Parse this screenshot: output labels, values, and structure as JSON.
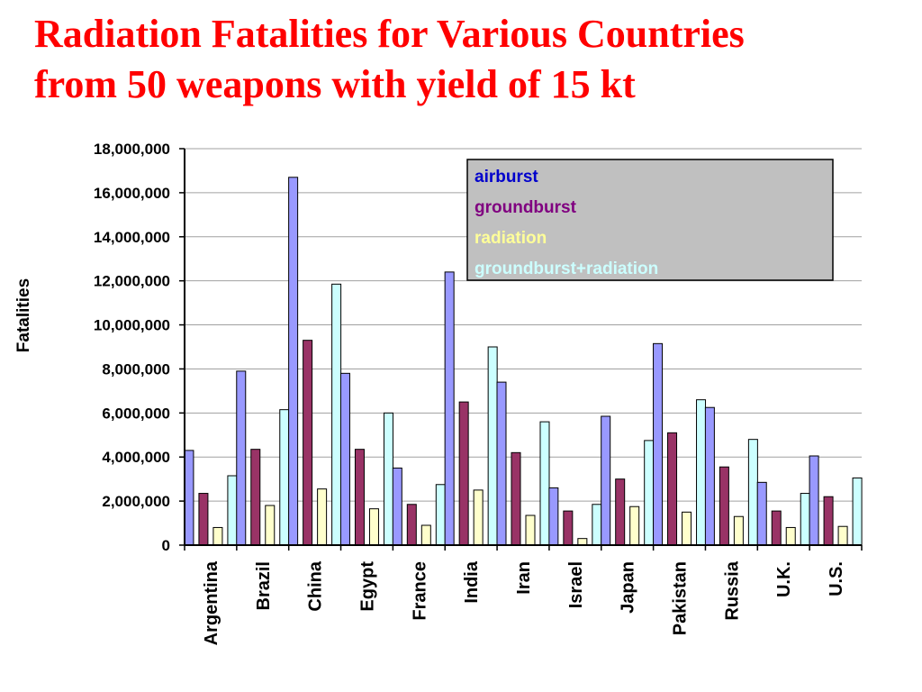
{
  "title_line1": "Radiation Fatalities for Various Countries",
  "title_line2": "from 50 weapons with yield of 15 kt",
  "chart_data": {
    "type": "bar",
    "ylabel": "Fatalities",
    "xlabel": "",
    "ylim": [
      0,
      18000000
    ],
    "yticks": [
      0,
      2000000,
      4000000,
      6000000,
      8000000,
      10000000,
      12000000,
      14000000,
      16000000,
      18000000
    ],
    "ytick_labels": [
      "0",
      "2,000,000",
      "4,000,000",
      "6,000,000",
      "8,000,000",
      "10,000,000",
      "12,000,000",
      "14,000,000",
      "16,000,000",
      "18,000,000"
    ],
    "grid": true,
    "legend_position": "top-right",
    "categories": [
      "Argentina",
      "Brazil",
      "China",
      "Egypt",
      "France",
      "India",
      "Iran",
      "Israel",
      "Japan",
      "Pakistan",
      "Russia",
      "U.K.",
      "U.S."
    ],
    "series": [
      {
        "name": "airburst",
        "color": "#9999ff",
        "text_color": "#0000cc",
        "values": [
          4300000,
          7900000,
          16700000,
          7800000,
          3500000,
          12400000,
          7400000,
          2600000,
          5850000,
          9150000,
          6250000,
          2850000,
          4050000
        ]
      },
      {
        "name": "groundburst",
        "color": "#993366",
        "text_color": "#800080",
        "values": [
          2350000,
          4350000,
          9300000,
          4350000,
          1850000,
          6500000,
          4200000,
          1550000,
          3000000,
          5100000,
          3550000,
          1550000,
          2200000
        ]
      },
      {
        "name": "radiation",
        "color": "#ffffcc",
        "text_color": "#ffff99",
        "values": [
          800000,
          1800000,
          2550000,
          1650000,
          900000,
          2500000,
          1350000,
          300000,
          1750000,
          1500000,
          1300000,
          800000,
          850000
        ]
      },
      {
        "name": "groundburst+radiation",
        "color": "#ccffff",
        "text_color": "#ccffff",
        "values": [
          3150000,
          6150000,
          11850000,
          6000000,
          2750000,
          9000000,
          5600000,
          1850000,
          4750000,
          6600000,
          4800000,
          2350000,
          3050000
        ]
      }
    ]
  }
}
